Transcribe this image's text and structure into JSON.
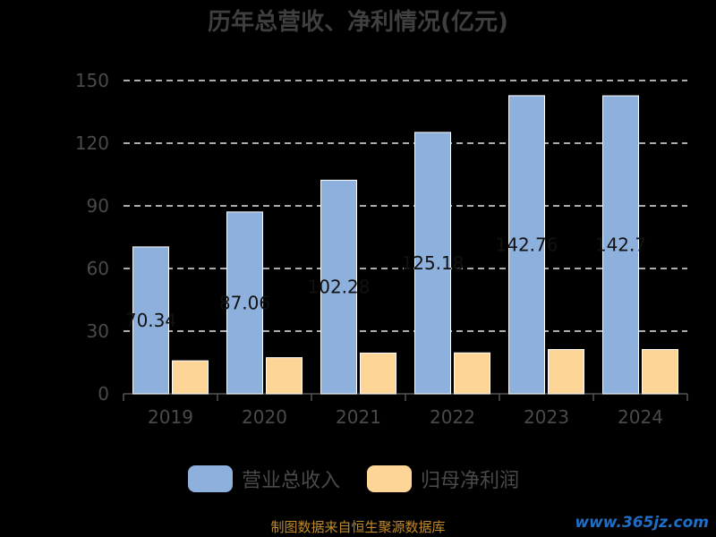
{
  "chart_data": {
    "type": "bar",
    "title": "历年总营收、净利情况(亿元)",
    "categories": [
      "2019",
      "2020",
      "2021",
      "2022",
      "2023",
      "2024"
    ],
    "series": [
      {
        "name": "营业总收入",
        "values": [
          70.34,
          87.06,
          102.28,
          125.18,
          142.76,
          142.7
        ],
        "color": "#8eb0dc",
        "labels": [
          "70.34",
          "87.06",
          "102.28",
          "125.18",
          "142.76",
          "142.7"
        ]
      },
      {
        "name": "归母净利润",
        "values": [
          15.8,
          17.3,
          19.5,
          19.6,
          21.2,
          21.2
        ],
        "color": "#fdd596"
      }
    ],
    "ylim": [
      0,
      150
    ],
    "yticks": [
      0,
      30,
      60,
      90,
      120,
      150
    ],
    "grid": true,
    "legend_position": "bottom"
  },
  "footer": {
    "source": "制图数据来自恒生聚源数据库",
    "watermark": "www.365jz.com"
  }
}
